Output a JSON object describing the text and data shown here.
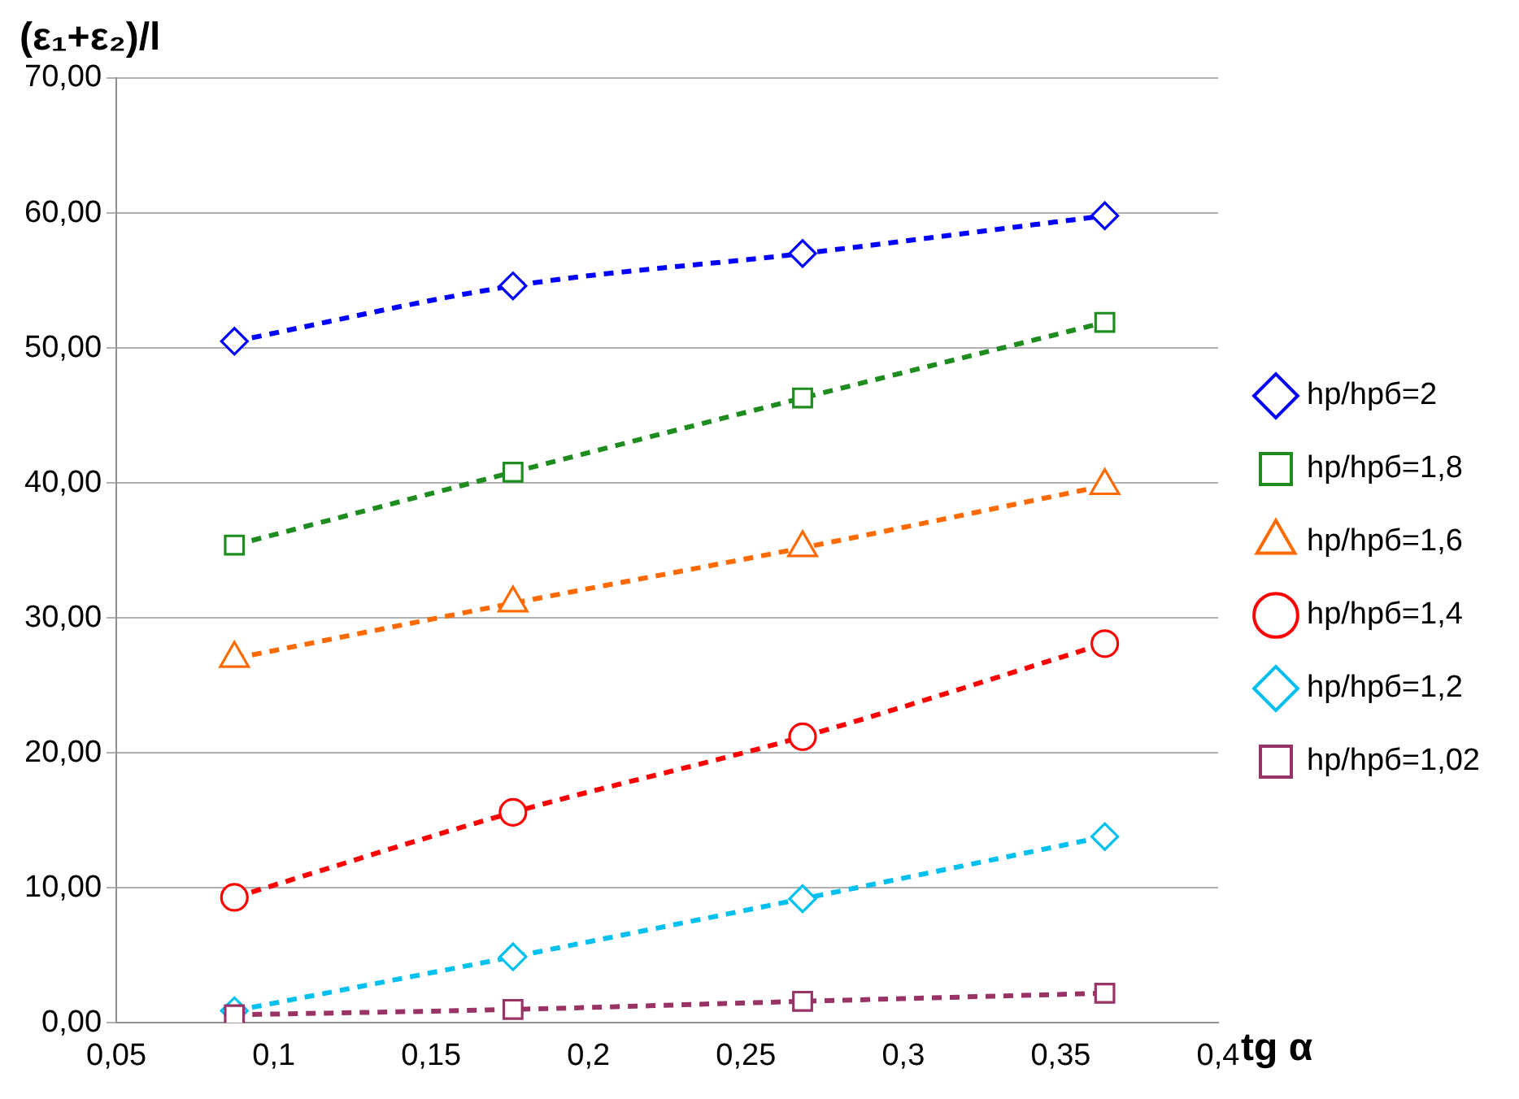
{
  "chart_data": {
    "type": "line",
    "ylabel": "(ε₁+ε₂)/l",
    "xlabel": "tg α",
    "x": [
      0.0875,
      0.176,
      0.268,
      0.364
    ],
    "series": [
      {
        "name": "hp/hpб=2",
        "color": "#0000ff",
        "marker": "diamond",
        "values": [
          50.5,
          54.6,
          57.0,
          59.8
        ]
      },
      {
        "name": "hp/hpб=1,8",
        "color": "#1e8c1e",
        "marker": "square",
        "values": [
          35.4,
          40.8,
          46.3,
          51.9
        ]
      },
      {
        "name": "hp/hpб=1,6",
        "color": "#ff6a00",
        "marker": "triangle",
        "values": [
          27.0,
          31.1,
          35.2,
          39.8
        ]
      },
      {
        "name": "hp/hpб=1,4",
        "color": "#ff0000",
        "marker": "circle",
        "values": [
          9.3,
          15.6,
          21.2,
          28.1
        ]
      },
      {
        "name": "hp/hpб=1,2",
        "color": "#00c0f0",
        "marker": "diamond",
        "values": [
          0.9,
          4.9,
          9.2,
          13.8
        ]
      },
      {
        "name": "hp/hpб=1,02",
        "color": "#993366",
        "marker": "square",
        "values": [
          0.6,
          1.0,
          1.6,
          2.2
        ]
      }
    ],
    "line_style": "dashed",
    "xlim": [
      0.05,
      0.4
    ],
    "xticks": [
      {
        "value": 0.05,
        "label": "0,05"
      },
      {
        "value": 0.1,
        "label": "0,1"
      },
      {
        "value": 0.15,
        "label": "0,15"
      },
      {
        "value": 0.2,
        "label": "0,2"
      },
      {
        "value": 0.25,
        "label": "0,25"
      },
      {
        "value": 0.3,
        "label": "0,3"
      },
      {
        "value": 0.35,
        "label": "0,35"
      },
      {
        "value": 0.4,
        "label": "0,4"
      }
    ],
    "ylim": [
      0,
      70
    ],
    "yticks": [
      {
        "value": 0,
        "label": "0,00"
      },
      {
        "value": 10,
        "label": "10,00"
      },
      {
        "value": 20,
        "label": "20,00"
      },
      {
        "value": 30,
        "label": "30,00"
      },
      {
        "value": 40,
        "label": "40,00"
      },
      {
        "value": 50,
        "label": "50,00"
      },
      {
        "value": 60,
        "label": "60,00"
      },
      {
        "value": 70,
        "label": "70,00"
      }
    ],
    "grid": "y",
    "legend": "right"
  }
}
